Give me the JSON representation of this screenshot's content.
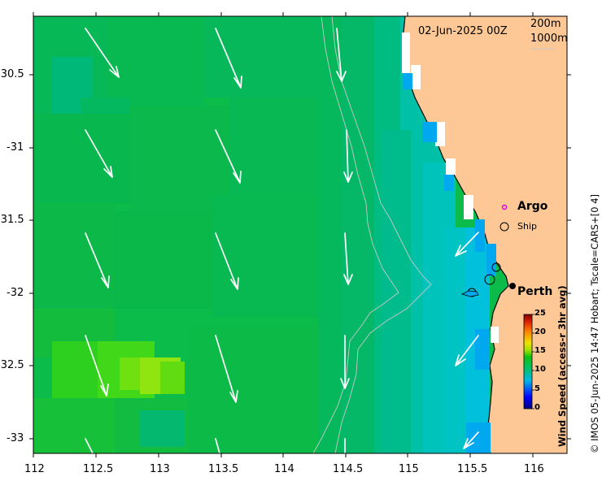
{
  "map": {
    "date": "02-Jun-2025 00Z",
    "isobaths": [
      "200m",
      "1000m"
    ],
    "longitudes": [
      "112",
      "112.5",
      "113",
      "113.5",
      "114",
      "114.5",
      "115",
      "115.5",
      "116"
    ],
    "latitudes": [
      "-30.5",
      "-31",
      "-31.5",
      "-32",
      "-32.5",
      "-33"
    ],
    "legend": {
      "argo": "Argo",
      "ship": "Ship"
    },
    "city": "Perth",
    "colorbar": {
      "title": "Wind Speed (access-r 3hr avg)",
      "ticks": [
        "0",
        "5",
        "10",
        "15",
        "20",
        "25"
      ],
      "min": 0,
      "max": 25
    },
    "credit": "© IMOS 05-Jun-2025 14:47 Hobart; Tscale=CARS+[0 4]",
    "colors": {
      "land": "#fdc896",
      "argo": "#e000e0"
    }
  }
}
